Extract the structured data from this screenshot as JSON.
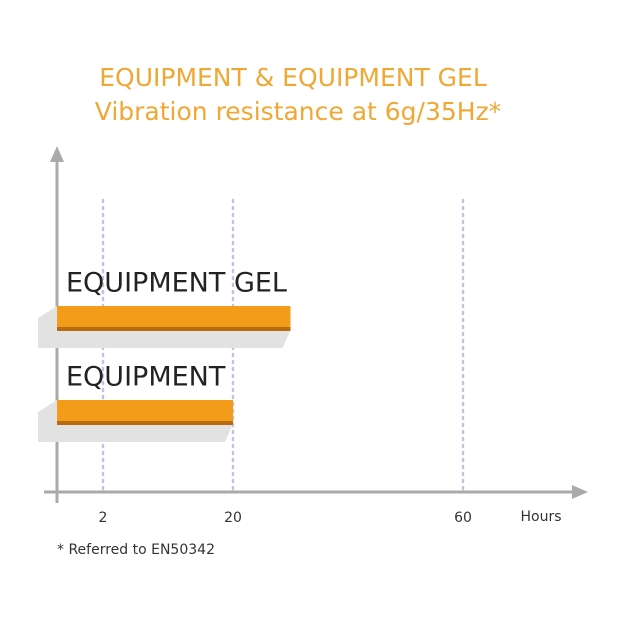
{
  "chart_data": {
    "type": "bar",
    "orientation": "horizontal",
    "title": "EQUIPMENT & EQUIPMENT GEL",
    "subtitle": "Vibration resistance at 6g/35Hz*",
    "categories": [
      "EQUIPMENT GEL",
      "EQUIPMENT"
    ],
    "values": [
      30,
      20
    ],
    "color": "#f39c1a",
    "xlim": [
      0,
      80
    ],
    "xticks": [
      2,
      20,
      60
    ],
    "xlabel": "Hours",
    "grid": true,
    "footnote": "* Referred to EN50342"
  }
}
